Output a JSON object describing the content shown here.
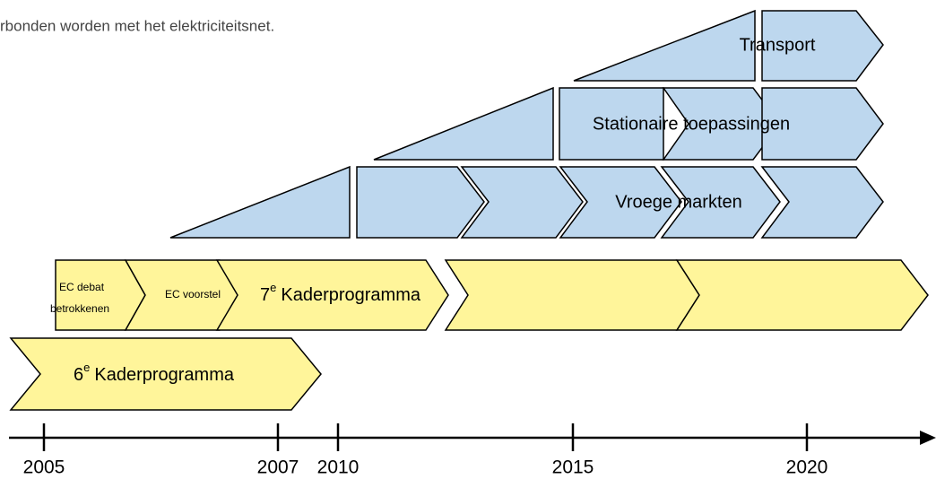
{
  "header": {
    "text": "rbonden worden met het elektriciteitsnet."
  },
  "applications": [
    {
      "label": "Transport"
    },
    {
      "label": "Stationaire toepassingen"
    },
    {
      "label": "Vroege markten"
    }
  ],
  "programs": {
    "ec_debate": {
      "line1": "EC debat",
      "line2": "betrokkenen"
    },
    "ec_proposal": {
      "label": "EC voorstel"
    },
    "fp7": {
      "number": "7",
      "sup": "e",
      "text": "Kaderprogramma"
    },
    "fp6": {
      "number": "6",
      "sup": "e",
      "text": "Kaderprogramma"
    }
  },
  "timeline": {
    "years": [
      "2005",
      "2007",
      "2010",
      "2015",
      "2020"
    ]
  }
}
